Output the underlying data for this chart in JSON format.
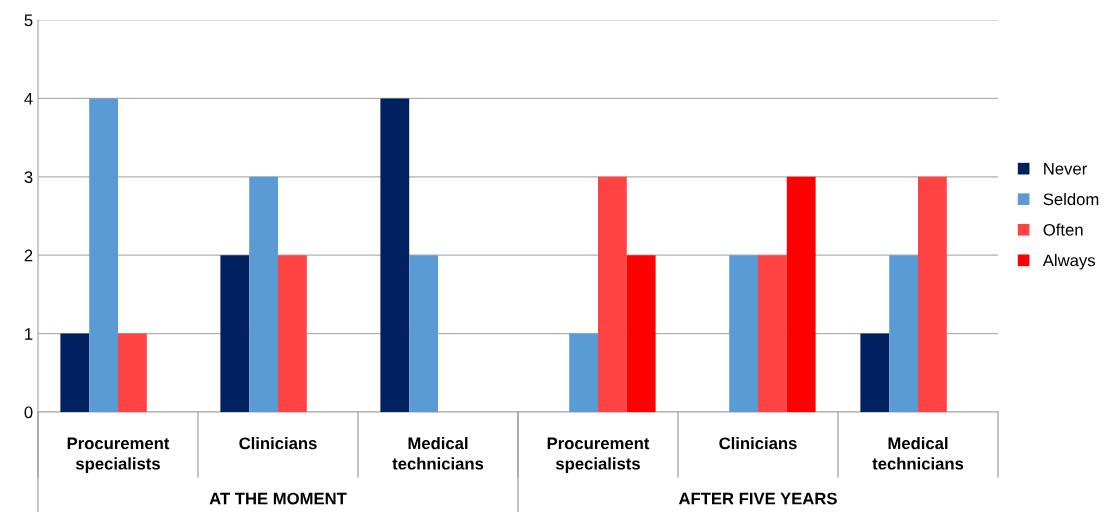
{
  "chart_data": {
    "type": "bar",
    "categories": [
      "Procurement specialists",
      "Clinicians",
      "Medical technicians",
      "Procurement specialists",
      "Clinicians",
      "Medical technicians"
    ],
    "annotations": [
      "AT THE MOMENT",
      "AFTER FIVE YEARS"
    ],
    "series": [
      {
        "name": "Never",
        "color": "#002060",
        "values": [
          1,
          2,
          4,
          0,
          0,
          1
        ]
      },
      {
        "name": "Seldom",
        "color": "#5b9bd5",
        "values": [
          4,
          3,
          2,
          1,
          2,
          2
        ]
      },
      {
        "name": "Often",
        "color": "#ff4343",
        "values": [
          1,
          2,
          0,
          3,
          2,
          3
        ]
      },
      {
        "name": "Always",
        "color": "#ff0000",
        "values": [
          0,
          0,
          0,
          2,
          3,
          0
        ]
      }
    ],
    "ylim": [
      0,
      5
    ],
    "yticks": [
      0,
      1,
      2,
      3,
      4,
      5
    ],
    "grid": "y",
    "legend": "right"
  }
}
